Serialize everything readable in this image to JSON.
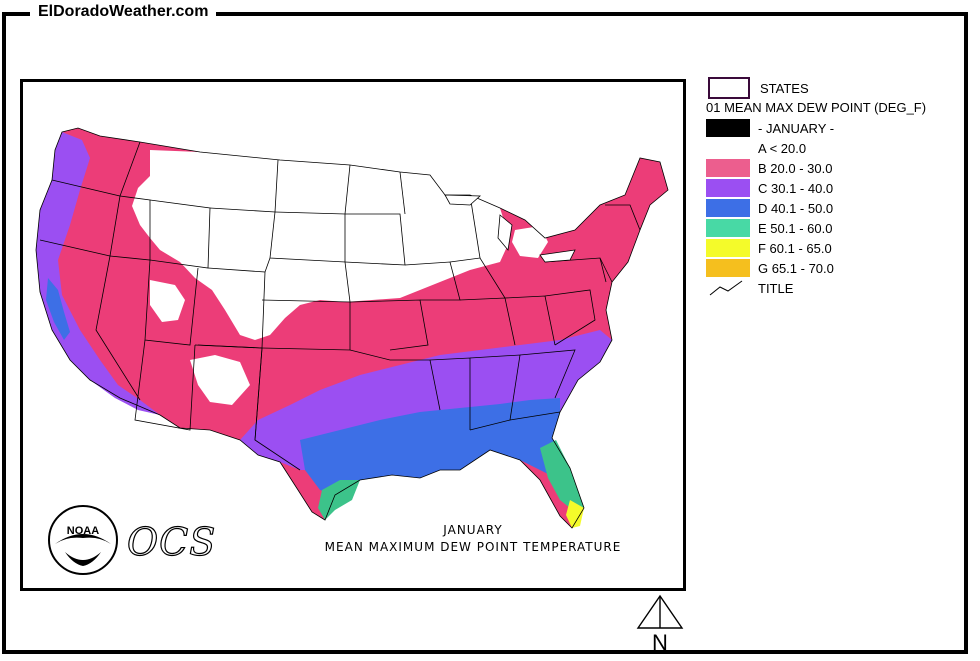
{
  "site_title": "ElDoradoWeather.com",
  "caption": {
    "line1": "JANUARY",
    "line2": "MEAN MAXIMUM DEW POINT TEMPERATURE"
  },
  "logos": {
    "agency": "NOAA",
    "ocs": "OCS"
  },
  "legend": {
    "states_label": "STATES",
    "layer_title": "01 MEAN MAX DEW POINT (DEG_F)",
    "month_label": "- JANUARY -",
    "classes": [
      {
        "label": "A < 20.0",
        "color": "#ffffff"
      },
      {
        "label": "B 20.0 - 30.0",
        "color": "#ec5e8e"
      },
      {
        "label": "C 30.1 - 40.0",
        "color": "#9b4ff2"
      },
      {
        "label": "D 40.1 - 50.0",
        "color": "#3d6fe6"
      },
      {
        "label": "E 50.1 - 60.0",
        "color": "#48d9a5"
      },
      {
        "label": "F 60.1 - 65.0",
        "color": "#f4fb2a"
      },
      {
        "label": "G 65.1 - 70.0",
        "color": "#f5bf1e"
      }
    ],
    "title_label": "TITLE"
  },
  "north_label": "N",
  "colors": {
    "pink": "#ec3d78",
    "purple": "#9b4ff2",
    "blue": "#3d6fe6",
    "green": "#3cc38a",
    "yellow": "#f4fb2a",
    "black": "#000000"
  }
}
